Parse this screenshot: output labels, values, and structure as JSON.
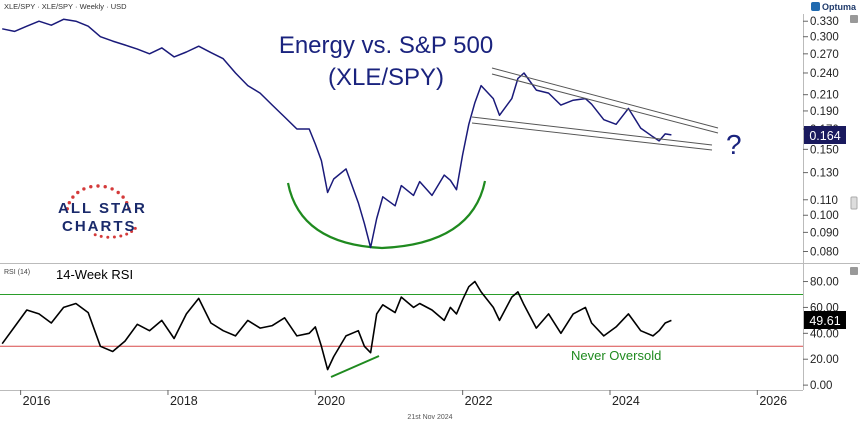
{
  "header": {
    "symbol_text": "XLE/SPY · XLE/SPY · Weekly · USD",
    "brand": "Optuma",
    "date_footer": "21st Nov 2024"
  },
  "logo": {
    "line1": "ALL STAR",
    "line2": "CHARTS"
  },
  "colors": {
    "price_line": "#1a1a7a",
    "rsi_line": "#000000",
    "arc": "#1f8a1f",
    "annotation_green": "#1f8a1f",
    "level_70": "#2a9d2a",
    "level_30": "#d84a4a",
    "trend_lines": "#555555",
    "title": "#1a237e",
    "value_box": "#1a1a5e",
    "logo_blue": "#1a2a6b",
    "logo_red": "#d43a3a"
  },
  "chart_data": [
    {
      "type": "line",
      "title": "Energy vs. S&P 500",
      "subtitle": "(XLE/SPY)",
      "ylim": [
        0.075,
        0.345
      ],
      "y_scale": "log",
      "yticks": [
        0.08,
        0.09,
        0.1,
        0.11,
        0.13,
        0.15,
        0.17,
        0.19,
        0.21,
        0.24,
        0.27,
        0.3,
        0.33
      ],
      "ytick_labels": [
        "0.080",
        "0.090",
        "0.100",
        "0.110",
        "0.130",
        "0.150",
        "0.170",
        "0.190",
        "0.210",
        "0.240",
        "0.270",
        "0.300",
        "0.330"
      ],
      "last_value_label": "0.164",
      "question_mark": "?",
      "series": [
        {
          "x": [
            "2015-10",
            "2015-12",
            "2016-02",
            "2016-04",
            "2016-06",
            "2016-08",
            "2016-10",
            "2016-12",
            "2017-02",
            "2017-04",
            "2017-06",
            "2017-08",
            "2017-10",
            "2017-12",
            "2018-02",
            "2018-04",
            "2018-06",
            "2018-08",
            "2018-10",
            "2018-12",
            "2019-02",
            "2019-04",
            "2019-06",
            "2019-08",
            "2019-10",
            "2019-12",
            "2020-01",
            "2020-02",
            "2020-03",
            "2020-04",
            "2020-06",
            "2020-08",
            "2020-09",
            "2020-10",
            "2020-11",
            "2020-12",
            "2021-02",
            "2021-03",
            "2021-05",
            "2021-06",
            "2021-08",
            "2021-10",
            "2021-11",
            "2021-12",
            "2022-01",
            "2022-02",
            "2022-03",
            "2022-04",
            "2022-06",
            "2022-07",
            "2022-09",
            "2022-10",
            "2022-11",
            "2023-01",
            "2023-03",
            "2023-05",
            "2023-07",
            "2023-09",
            "2023-10",
            "2023-12",
            "2024-02",
            "2024-04",
            "2024-06",
            "2024-08",
            "2024-09",
            "2024-10",
            "2024-11"
          ],
          "y": [
            0.315,
            0.31,
            0.32,
            0.33,
            0.322,
            0.334,
            0.33,
            0.32,
            0.3,
            0.292,
            0.285,
            0.278,
            0.27,
            0.28,
            0.265,
            0.273,
            0.283,
            0.272,
            0.262,
            0.24,
            0.222,
            0.212,
            0.197,
            0.183,
            0.17,
            0.17,
            0.155,
            0.14,
            0.115,
            0.125,
            0.133,
            0.108,
            0.095,
            0.082,
            0.098,
            0.112,
            0.106,
            0.12,
            0.113,
            0.123,
            0.113,
            0.128,
            0.124,
            0.117,
            0.145,
            0.175,
            0.2,
            0.222,
            0.205,
            0.185,
            0.205,
            0.232,
            0.24,
            0.216,
            0.212,
            0.197,
            0.203,
            0.205,
            0.198,
            0.18,
            0.175,
            0.193,
            0.171,
            0.162,
            0.158,
            0.165,
            0.164
          ]
        }
      ]
    },
    {
      "type": "line",
      "title": "14-Week RSI",
      "panel_label": "RSI (14)",
      "ylim": [
        -3,
        92
      ],
      "yticks": [
        0,
        20,
        40,
        60,
        80
      ],
      "ytick_labels": [
        "0.00",
        "20.00",
        "40.00",
        "60.00",
        "80.00"
      ],
      "levels": [
        70,
        30
      ],
      "last_value_label": "49.61",
      "annotation": "Never Oversold",
      "series": [
        {
          "x": [
            "2015-10",
            "2015-12",
            "2016-02",
            "2016-04",
            "2016-06",
            "2016-08",
            "2016-10",
            "2016-12",
            "2017-02",
            "2017-04",
            "2017-06",
            "2017-08",
            "2017-10",
            "2017-12",
            "2018-02",
            "2018-04",
            "2018-06",
            "2018-08",
            "2018-10",
            "2018-12",
            "2019-02",
            "2019-04",
            "2019-06",
            "2019-08",
            "2019-10",
            "2019-12",
            "2020-01",
            "2020-02",
            "2020-03",
            "2020-04",
            "2020-06",
            "2020-08",
            "2020-09",
            "2020-10",
            "2020-11",
            "2020-12",
            "2021-02",
            "2021-03",
            "2021-05",
            "2021-06",
            "2021-08",
            "2021-10",
            "2021-11",
            "2021-12",
            "2022-01",
            "2022-02",
            "2022-03",
            "2022-04",
            "2022-06",
            "2022-07",
            "2022-09",
            "2022-10",
            "2022-11",
            "2023-01",
            "2023-03",
            "2023-05",
            "2023-07",
            "2023-09",
            "2023-10",
            "2023-12",
            "2024-02",
            "2024-04",
            "2024-06",
            "2024-08",
            "2024-09",
            "2024-10",
            "2024-11"
          ],
          "y": [
            32,
            45,
            58,
            55,
            48,
            60,
            63,
            56,
            30,
            26,
            34,
            47,
            42,
            50,
            36,
            55,
            67,
            48,
            42,
            38,
            50,
            44,
            46,
            52,
            38,
            40,
            45,
            30,
            12,
            22,
            38,
            42,
            30,
            25,
            55,
            62,
            56,
            68,
            60,
            63,
            58,
            50,
            60,
            55,
            66,
            76,
            80,
            72,
            60,
            50,
            68,
            72,
            62,
            44,
            55,
            40,
            55,
            60,
            48,
            38,
            45,
            55,
            42,
            38,
            42,
            48,
            50
          ]
        }
      ]
    }
  ],
  "x_axis": {
    "tick_labels": [
      "2016",
      "2018",
      "2020",
      "2022",
      "2024",
      "2026"
    ]
  }
}
